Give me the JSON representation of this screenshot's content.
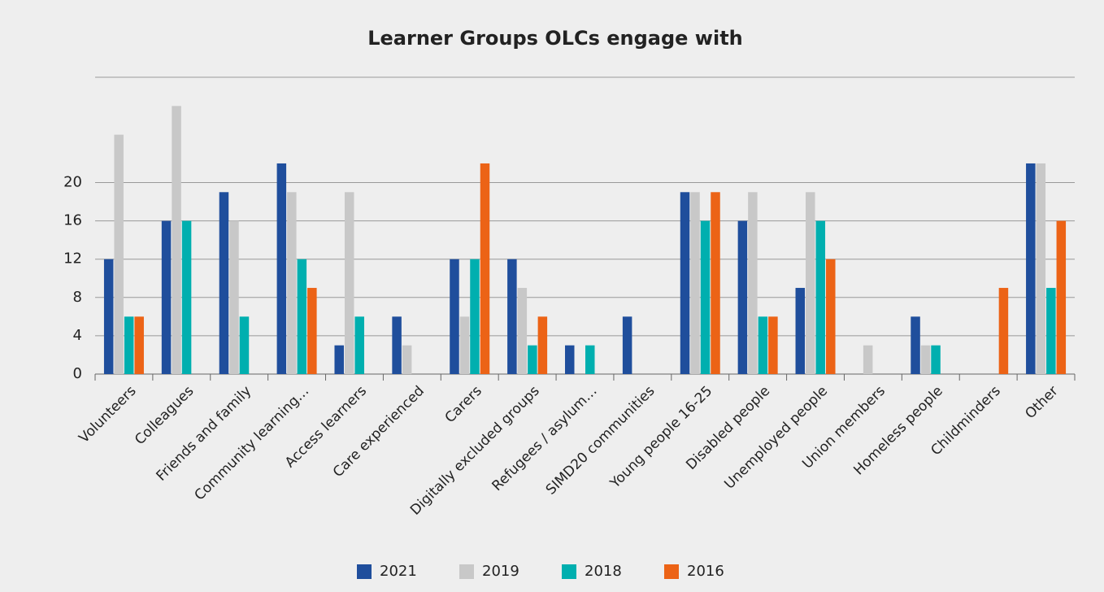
{
  "chart_data": {
    "type": "bar",
    "title": "Learner Groups OLCs engage with",
    "categories": [
      "Volunteers",
      "Colleagues",
      "Friends and family",
      "Community learning…",
      "Access learners",
      "Care experienced",
      "Carers",
      "Digitally excluded groups",
      "Refugees / asylum…",
      "SIMD20 communities",
      "Young people 16-25",
      "Disabled people",
      "Unemployed people",
      "Union members",
      "Homeless people",
      "Childminders",
      "Other"
    ],
    "series": [
      {
        "name": "2021",
        "color": "#1f4e9c",
        "values": [
          12,
          16,
          19,
          22,
          3,
          6,
          12,
          12,
          3,
          6,
          19,
          16,
          9,
          0,
          6,
          0,
          22
        ]
      },
      {
        "name": "2019",
        "color": "#c8c8c8",
        "values": [
          25,
          28,
          16,
          19,
          19,
          3,
          6,
          9,
          0,
          0,
          19,
          19,
          19,
          3,
          3,
          0,
          22
        ]
      },
      {
        "name": "2018",
        "color": "#00afaf",
        "values": [
          6,
          16,
          6,
          12,
          6,
          0,
          12,
          3,
          3,
          0,
          16,
          6,
          16,
          0,
          3,
          0,
          9
        ]
      },
      {
        "name": "2016",
        "color": "#ec6316",
        "values": [
          6,
          0,
          0,
          9,
          0,
          0,
          22,
          6,
          0,
          0,
          19,
          6,
          12,
          0,
          0,
          9,
          16
        ]
      }
    ],
    "ylim": [
      0,
      31
    ],
    "yticks": [
      0,
      4,
      8,
      12,
      16,
      20
    ],
    "grid": true,
    "legend": "bottom"
  }
}
